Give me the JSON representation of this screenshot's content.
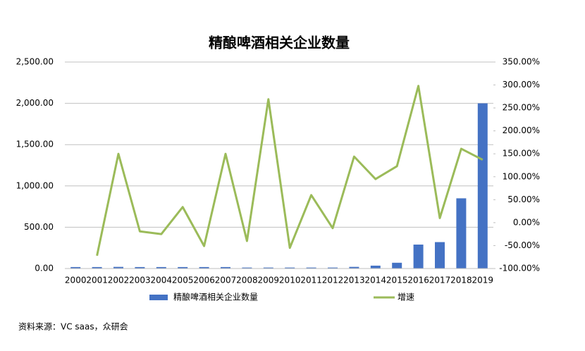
{
  "chart_data": {
    "type": "bar-line",
    "title": "精酿啤酒相关企业数量",
    "categories": [
      "2000",
      "2001",
      "2002",
      "2003",
      "2004",
      "2005",
      "2006",
      "2007",
      "2008",
      "2009",
      "2010",
      "2011",
      "2012",
      "2013",
      "2014",
      "2015",
      "2016",
      "2017",
      "2018",
      "2019"
    ],
    "series": [
      {
        "name": "精酿啤酒相关企业数量",
        "type": "bar",
        "color": "#4472c4",
        "values": [
          18,
          18,
          20,
          18,
          18,
          18,
          18,
          18,
          12,
          12,
          12,
          12,
          12,
          20,
          35,
          70,
          290,
          320,
          850,
          2000
        ]
      },
      {
        "name": "增速",
        "type": "line",
        "axis": "y2",
        "color": "#9bbb59",
        "values": [
          null,
          -72,
          150,
          -19,
          -25,
          34,
          -51,
          150,
          -40,
          269,
          -55,
          60,
          -12,
          144,
          95,
          123,
          298,
          10,
          161,
          137
        ]
      }
    ],
    "ylim": [
      0,
      2500
    ],
    "yticks": [
      {
        "value": 0,
        "label": "0.00"
      },
      {
        "value": 500,
        "label": "500.00"
      },
      {
        "value": 1000,
        "label": "1,000.00"
      },
      {
        "value": 1500,
        "label": "1,500.00"
      },
      {
        "value": 2000,
        "label": "2,000.00"
      },
      {
        "value": 2500,
        "label": "2,500.00"
      }
    ],
    "y2lim": [
      -100,
      350
    ],
    "y2ticks": [
      {
        "value": -100,
        "label": "-100.00%"
      },
      {
        "value": -50,
        "label": "-50.00%"
      },
      {
        "value": 0,
        "label": "0.00%"
      },
      {
        "value": 50,
        "label": "50.00%"
      },
      {
        "value": 100,
        "label": "100.00%"
      },
      {
        "value": 150,
        "label": "150.00%"
      },
      {
        "value": 200,
        "label": "200.00%"
      },
      {
        "value": 250,
        "label": "250.00%"
      },
      {
        "value": 300,
        "label": "300.00%"
      },
      {
        "value": 350,
        "label": "350.00%"
      }
    ],
    "grid": true,
    "legend": "bottom",
    "source": "资料来源：VC saas，众研会"
  }
}
